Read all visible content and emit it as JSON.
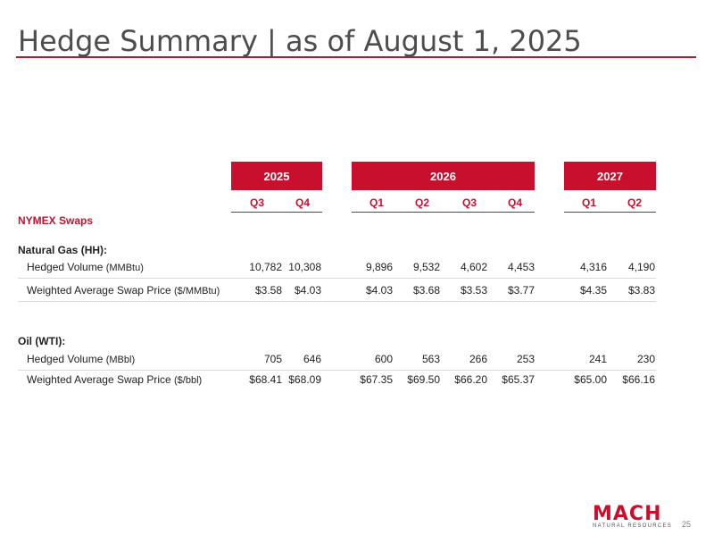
{
  "title": "Hedge Summary | as of August 1, 2025",
  "years": [
    {
      "label": "2025"
    },
    {
      "label": "2026"
    },
    {
      "label": "2027"
    }
  ],
  "quarters": [
    "Q3",
    "Q4",
    "Q1",
    "Q2",
    "Q3",
    "Q4",
    "Q1",
    "Q2"
  ],
  "sections": {
    "nymex": "NYMEX Swaps",
    "gas": "Natural Gas (HH):",
    "oil": "Oil (WTI):"
  },
  "rows": {
    "gas_volume": {
      "label": "Hedged Volume ",
      "unit": "(MMBtu)",
      "values": [
        "10,782",
        "10,308",
        "9,896",
        "9,532",
        "4,602",
        "4,453",
        "4,316",
        "4,190"
      ]
    },
    "gas_price": {
      "label": "Weighted Average Swap Price ",
      "unit": "($/MMBtu)",
      "values": [
        "$3.58",
        "$4.03",
        "$4.03",
        "$3.68",
        "$3.53",
        "$3.77",
        "$4.35",
        "$3.83"
      ]
    },
    "oil_volume": {
      "label": "Hedged Volume ",
      "unit": "(MBbl)",
      "values": [
        "705",
        "646",
        "600",
        "563",
        "266",
        "253",
        "241",
        "230"
      ]
    },
    "oil_price": {
      "label": "Weighted Average Swap Price ",
      "unit": "($/bbl)",
      "values": [
        "$68.41",
        "$68.09",
        "$67.35",
        "$69.50",
        "$66.20",
        "$65.37",
        "$65.00",
        "$66.16"
      ]
    }
  },
  "logo": {
    "name": "MACH",
    "subtitle": "NATURAL RESOURCES"
  },
  "page_number": "25",
  "colors": {
    "accent": "#c8102e",
    "title": "#4d4d4d"
  }
}
